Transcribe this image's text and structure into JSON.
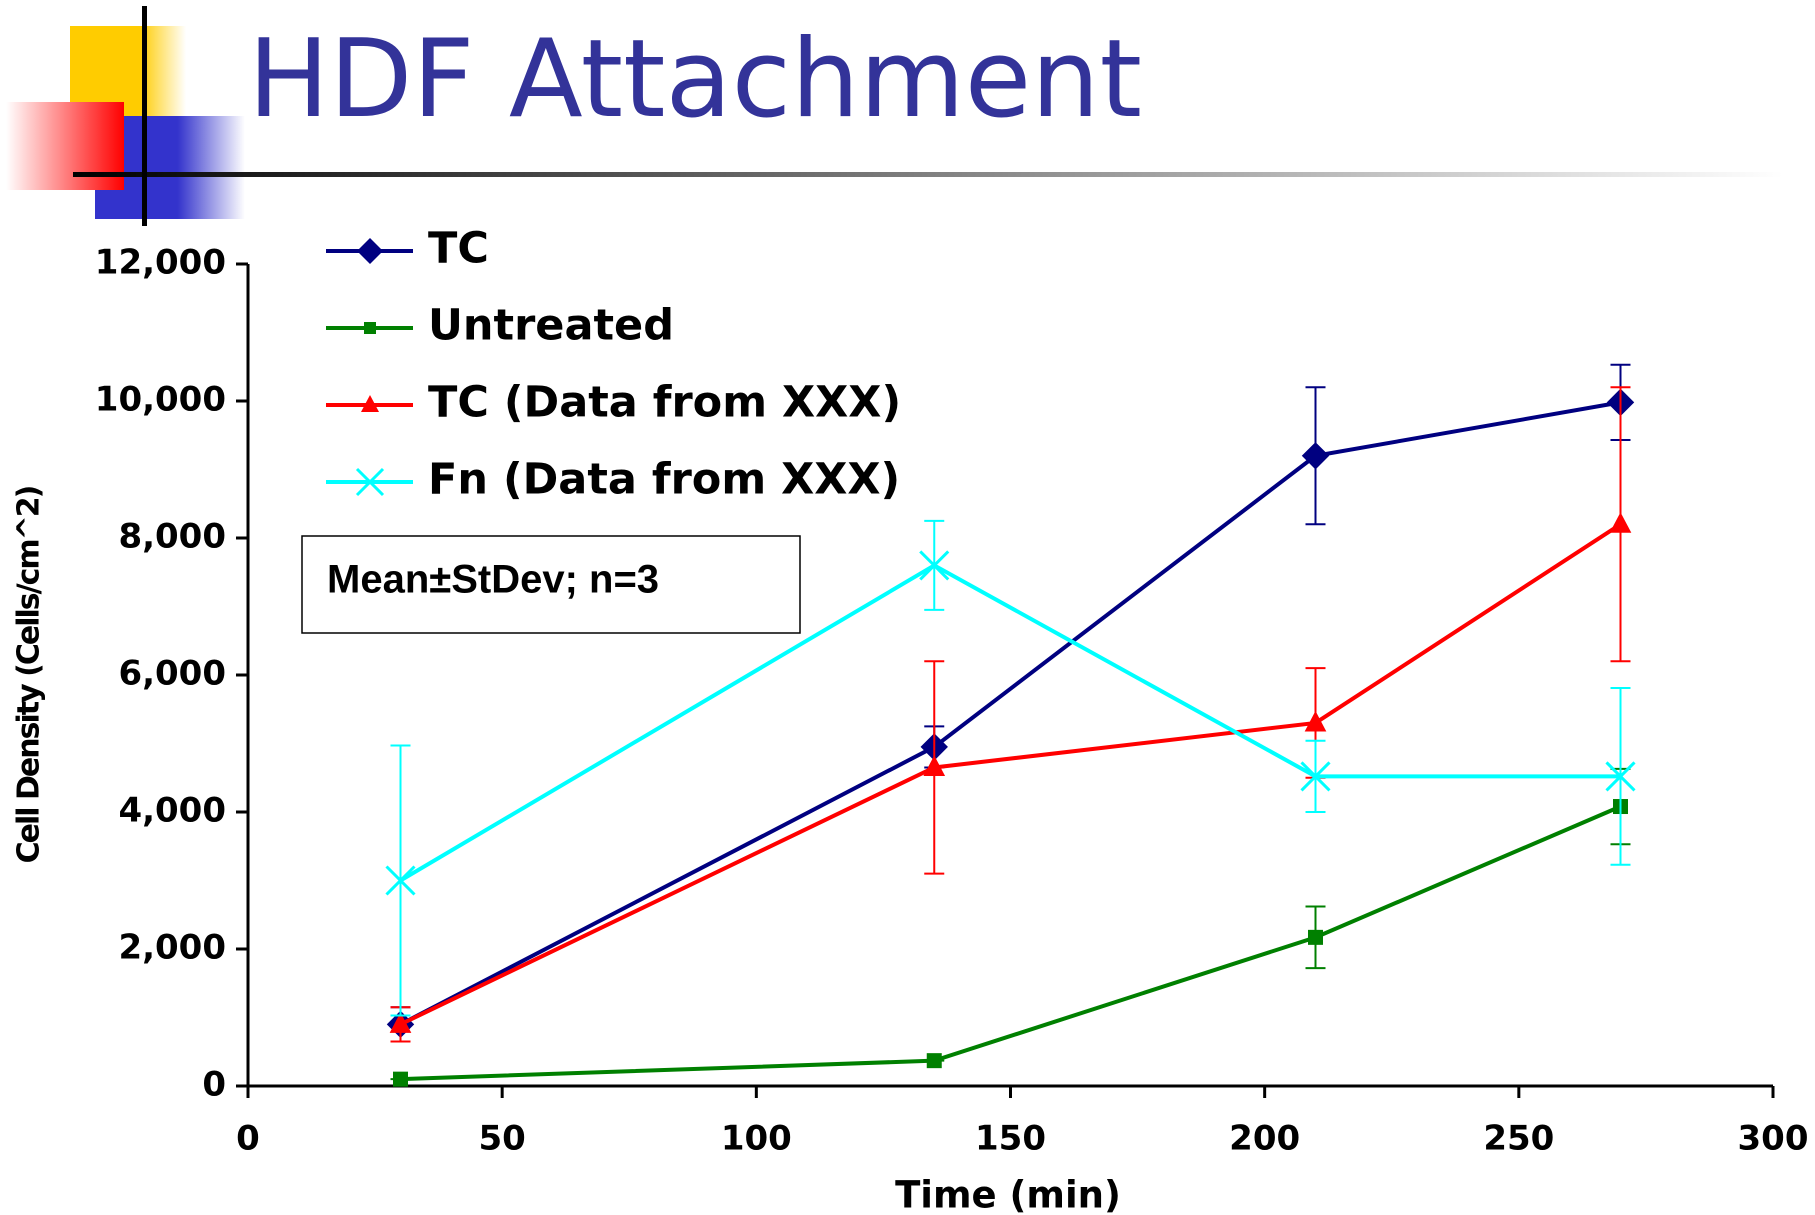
{
  "chart_data": {
    "type": "line",
    "title": "HDF Attachment",
    "x_label": "Time (min)",
    "y_label": "Cell Density (Cells/cm^2)",
    "annotation": "Mean±StDev; n=3",
    "x": [
      30,
      135,
      210,
      270
    ],
    "series": [
      {
        "name": "TC",
        "color": "#000080",
        "marker": "diamond",
        "values": [
          900,
          4950,
          9200,
          9980
        ],
        "errors": [
          250,
          300,
          1000,
          550
        ]
      },
      {
        "name": "Untreated",
        "color": "#008000",
        "marker": "square",
        "values": [
          100,
          370,
          2170,
          4080
        ],
        "errors": [
          0,
          0,
          450,
          550
        ]
      },
      {
        "name": "TC (Data from XXX)",
        "color": "#ff0000",
        "marker": "triangle",
        "values": [
          900,
          4650,
          5300,
          8200
        ],
        "errors": [
          250,
          1550,
          800,
          2000
        ]
      },
      {
        "name": "Fn (Data from XXX)",
        "color": "#00ffff",
        "marker": "x",
        "values": [
          3000,
          7600,
          4520,
          4520
        ],
        "errors": [
          1970,
          650,
          520,
          1290
        ]
      }
    ],
    "xlim": [
      0,
      300
    ],
    "xticks": [
      0,
      50,
      100,
      150,
      200,
      250,
      300
    ],
    "ylim": [
      0,
      12000
    ],
    "yticks": [
      0,
      {
        "value": 2000,
        "label": "2,000"
      },
      {
        "value": 4000,
        "label": "4,000"
      },
      {
        "value": 6000,
        "label": "6,000"
      },
      {
        "value": 8000,
        "label": "8,000"
      },
      {
        "value": 10000,
        "label": "10,000"
      },
      {
        "value": 12000,
        "label": "12,000"
      }
    ],
    "grid": false,
    "legend": "top-left"
  }
}
